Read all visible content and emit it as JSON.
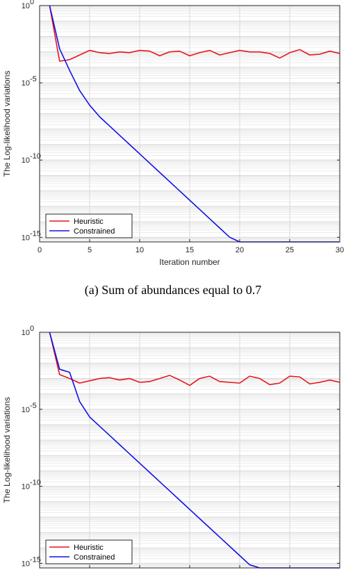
{
  "chart_data": [
    {
      "type": "line",
      "caption": "(a)  Sum of abundances equal to 0.7",
      "xlabel": "Iteration number",
      "ylabel": "The Log-likelihood variations",
      "yscale": "log",
      "xlim": [
        0,
        30
      ],
      "ylim_exp": [
        -15.3,
        0
      ],
      "grid": true,
      "legend_position": "bottom-left",
      "x_ticks": [
        "0",
        "5",
        "10",
        "15",
        "20",
        "25",
        "30"
      ],
      "y_ticks": [
        {
          "base": "10",
          "exp": "0",
          "value": 0
        },
        {
          "base": "10",
          "exp": "-5",
          "value": -5
        },
        {
          "base": "10",
          "exp": "-10",
          "value": -10
        },
        {
          "base": "10",
          "exp": "-15",
          "value": -15
        }
      ],
      "series": [
        {
          "name": "Heuristic",
          "color": "#e8141b",
          "x": [
            1,
            2,
            3,
            4,
            5,
            6,
            7,
            8,
            9,
            10,
            11,
            12,
            13,
            14,
            15,
            16,
            17,
            18,
            19,
            20,
            21,
            22,
            23,
            24,
            25,
            26,
            27,
            28,
            29,
            30
          ],
          "log10_y": [
            0,
            -3.6,
            -3.5,
            -3.2,
            -2.9,
            -3.05,
            -3.1,
            -3.0,
            -3.05,
            -2.9,
            -2.95,
            -3.25,
            -3.0,
            -2.95,
            -3.25,
            -3.05,
            -2.9,
            -3.2,
            -3.05,
            -2.9,
            -3.0,
            -3.0,
            -3.1,
            -3.4,
            -3.05,
            -2.85,
            -3.2,
            -3.15,
            -2.95,
            -3.1
          ]
        },
        {
          "name": "Constrained",
          "color": "#1010e6",
          "x": [
            1,
            2,
            3,
            4,
            5,
            6,
            7,
            8,
            9,
            10,
            11,
            12,
            13,
            14,
            15,
            16,
            17,
            18,
            19,
            20,
            21,
            22,
            23,
            24,
            25,
            26,
            27,
            28,
            29,
            30
          ],
          "log10_y": [
            0,
            -2.8,
            -4.2,
            -5.5,
            -6.45,
            -7.2,
            -7.8,
            -8.4,
            -9.0,
            -9.6,
            -10.2,
            -10.8,
            -11.4,
            -12.0,
            -12.6,
            -13.2,
            -13.8,
            -14.4,
            -15.0,
            -15.6,
            -16.1,
            -16.4,
            -16.55,
            -16.6,
            -16.65,
            -16.7,
            -16.6,
            -16.6,
            -16.5,
            -16.5
          ]
        }
      ]
    },
    {
      "type": "line",
      "xlabel": "",
      "ylabel": "The Log-likelihood variations",
      "yscale": "log",
      "xlim": [
        0,
        30
      ],
      "ylim_exp": [
        -15.3,
        0
      ],
      "grid": true,
      "legend_position": "bottom-left",
      "x_ticks": [],
      "y_ticks": [
        {
          "base": "10",
          "exp": "0",
          "value": 0
        },
        {
          "base": "10",
          "exp": "-5",
          "value": -5
        },
        {
          "base": "10",
          "exp": "-10",
          "value": -10
        },
        {
          "base": "10",
          "exp": "-15",
          "value": -15
        }
      ],
      "series": [
        {
          "name": "Heuristic",
          "color": "#e8141b",
          "x": [
            1,
            2,
            3,
            4,
            5,
            6,
            7,
            8,
            9,
            10,
            11,
            12,
            13,
            14,
            15,
            16,
            17,
            18,
            19,
            20,
            21,
            22,
            23,
            24,
            25,
            26,
            27,
            28,
            29,
            30
          ],
          "log10_y": [
            0,
            -2.75,
            -3.0,
            -3.3,
            -3.15,
            -3.0,
            -2.95,
            -3.1,
            -3.0,
            -3.25,
            -3.2,
            -3.0,
            -2.8,
            -3.1,
            -3.45,
            -3.0,
            -2.85,
            -3.2,
            -3.25,
            -3.3,
            -2.85,
            -3.0,
            -3.4,
            -3.3,
            -2.85,
            -2.9,
            -3.35,
            -3.25,
            -3.1,
            -3.25
          ]
        },
        {
          "name": "Constrained",
          "color": "#1010e6",
          "x": [
            1,
            2,
            3,
            4,
            5,
            6,
            7,
            8,
            9,
            10,
            11,
            12,
            13,
            14,
            15,
            16,
            17,
            18,
            19,
            20,
            21,
            22,
            23,
            24,
            25,
            26,
            27,
            28,
            29,
            30
          ],
          "log10_y": [
            0,
            -2.4,
            -2.6,
            -4.5,
            -5.5,
            -6.1,
            -6.7,
            -7.3,
            -7.9,
            -8.5,
            -9.1,
            -9.7,
            -10.3,
            -10.9,
            -11.5,
            -12.1,
            -12.7,
            -13.3,
            -13.9,
            -14.5,
            -15.1,
            -15.6,
            -15.95,
            -16.05,
            -16.1,
            -16.1,
            -16.1,
            -16.1,
            -16.1,
            -16.05
          ]
        }
      ]
    }
  ]
}
